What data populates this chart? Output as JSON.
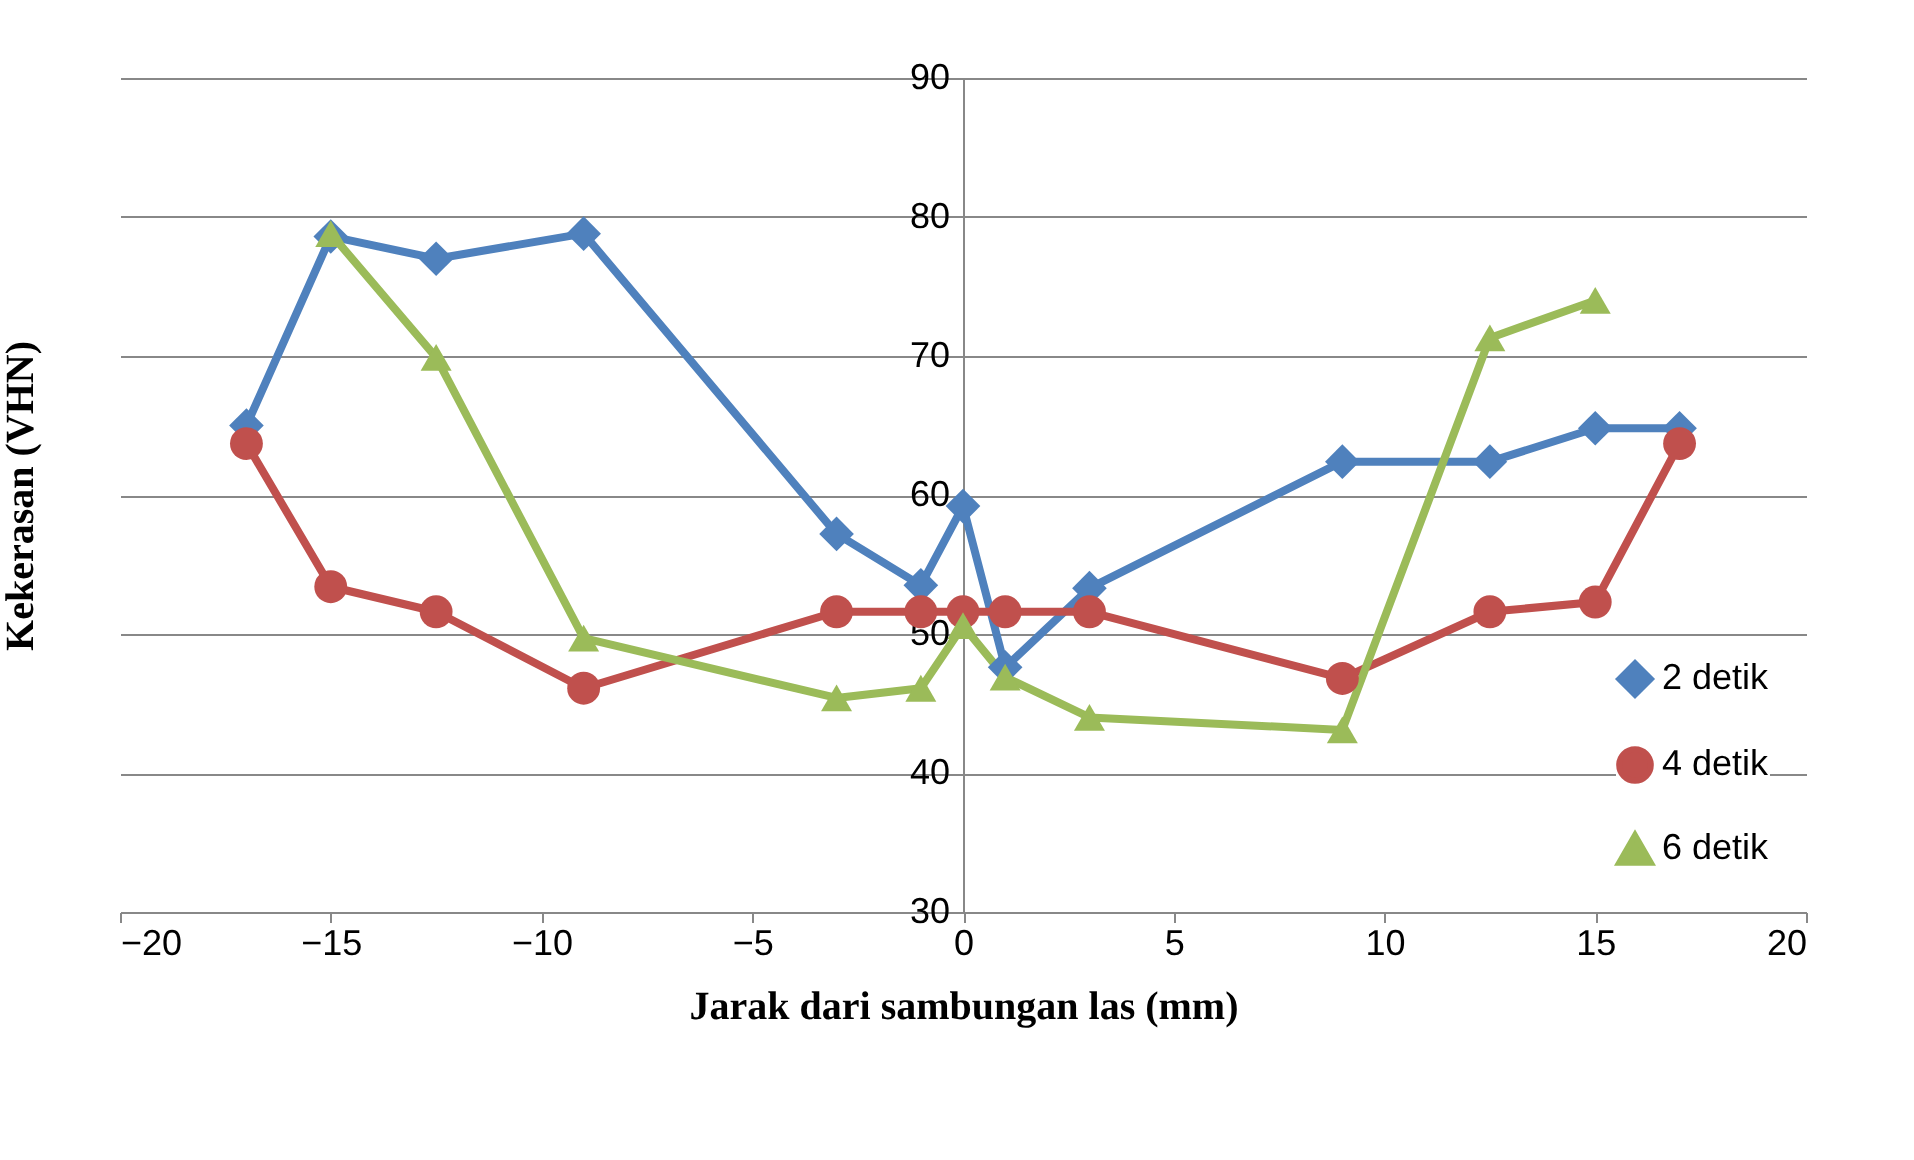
{
  "chart_data": {
    "type": "line",
    "xlabel": "Jarak dari sambungan las (mm)",
    "ylabel": "Kekerasan (VHN)",
    "xlim": [
      -20,
      20
    ],
    "xticks": [
      -20,
      -15,
      -10,
      -5,
      0,
      5,
      10,
      15,
      20
    ],
    "ylim": [
      30,
      90
    ],
    "yticks": [
      30,
      40,
      50,
      60,
      70,
      80,
      90
    ],
    "grid": "y",
    "legend": "bottom right",
    "line_style": "solid",
    "series": [
      {
        "name": "2 detik",
        "color": "#4f81bd",
        "marker": "diamond",
        "x": [
          -17,
          -15,
          -12.5,
          -9,
          -3,
          -1,
          0,
          1,
          3,
          9,
          12.5,
          15,
          17
        ],
        "values": [
          65,
          78.6,
          77,
          78.8,
          57.2,
          53.5,
          59.2,
          47.6,
          53.3,
          62.4,
          62.4,
          64.8,
          64.8
        ]
      },
      {
        "name": "4 detik",
        "color": "#c0504d",
        "marker": "circle",
        "x": [
          -17,
          -15,
          -12.5,
          -9,
          -3,
          -1,
          0,
          1,
          3,
          9,
          12.5,
          15,
          17
        ],
        "values": [
          63.7,
          53.4,
          51.6,
          46.1,
          51.6,
          51.6,
          51.6,
          51.6,
          51.6,
          46.8,
          51.6,
          52.3,
          63.7
        ]
      },
      {
        "name": "6 detik",
        "color": "#9bbb59",
        "marker": "triangle",
        "x": [
          -15,
          -12.5,
          -9,
          -3,
          -1,
          0,
          1,
          3,
          9,
          12.5,
          15
        ],
        "values": [
          78.8,
          69.9,
          49.7,
          45.4,
          46.1,
          50.6,
          46.9,
          44,
          43.1,
          71.3,
          74
        ]
      }
    ]
  }
}
